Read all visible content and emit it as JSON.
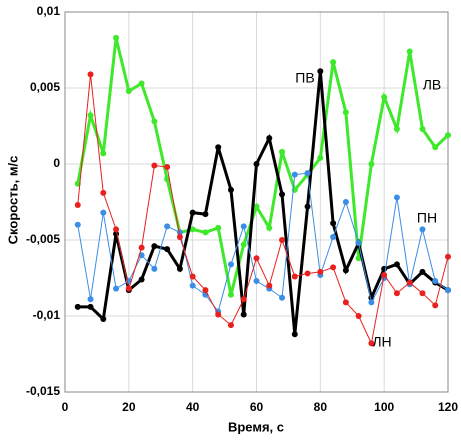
{
  "chart_data": {
    "type": "line",
    "x_label": "Время, с",
    "y_label": "Скорость, м/с",
    "x": [
      4,
      8,
      12,
      16,
      20,
      24,
      28,
      32,
      36,
      40,
      44,
      48,
      52,
      56,
      60,
      64,
      68,
      72,
      76,
      80,
      84,
      88,
      92,
      96,
      100,
      104,
      108,
      112,
      116,
      120
    ],
    "series": [
      {
        "name": "ЛВ",
        "color": "#3ee82a",
        "values": [
          -0.0013,
          0.0032,
          0.0007,
          0.0083,
          0.0048,
          0.0053,
          0.0028,
          -0.001,
          -0.0045,
          -0.0043,
          -0.0045,
          -0.0042,
          -0.0086,
          -0.0053,
          -0.0028,
          -0.0042,
          0.0008,
          -0.0017,
          -0.0007,
          0.0004,
          0.0067,
          0.0034,
          -0.0062,
          0.0,
          0.0044,
          0.0023,
          0.0074,
          0.0023,
          0.0011,
          0.0019
        ]
      },
      {
        "name": "ПВ",
        "color": "#000000",
        "values": [
          -0.0094,
          -0.0094,
          -0.0102,
          -0.0046,
          -0.0083,
          -0.0076,
          -0.0054,
          -0.0056,
          -0.0069,
          -0.0032,
          -0.0033,
          0.0011,
          -0.0017,
          -0.0099,
          0.0,
          0.0017,
          -0.002,
          -0.0112,
          -0.0028,
          0.0061,
          -0.0039,
          -0.007,
          -0.0052,
          -0.0088,
          -0.0069,
          -0.0066,
          -0.0079,
          -0.0071,
          -0.0078,
          -0.0083
        ]
      },
      {
        "name": "ПН",
        "color": "#3a8ee6",
        "values": [
          -0.004,
          -0.0089,
          -0.0032,
          -0.0082,
          -0.0077,
          -0.006,
          -0.0069,
          -0.0041,
          -0.0045,
          -0.008,
          -0.0086,
          -0.0097,
          -0.0066,
          -0.0041,
          -0.0077,
          -0.0082,
          -0.0088,
          -0.0007,
          -0.0006,
          -0.0073,
          -0.0048,
          -0.0025,
          -0.0052,
          -0.0091,
          -0.0075,
          -0.0022,
          -0.0079,
          -0.0043,
          -0.0077,
          -0.0083
        ]
      },
      {
        "name": "ЛН",
        "color": "#e8201e",
        "values": [
          -0.0027,
          0.0059,
          -0.0019,
          -0.0043,
          -0.0082,
          -0.0055,
          -0.0001,
          -0.0002,
          -0.0048,
          -0.0074,
          -0.0083,
          -0.0099,
          -0.0106,
          -0.0089,
          -0.0062,
          -0.008,
          -0.005,
          -0.0074,
          -0.0072,
          -0.0071,
          -0.0068,
          -0.0091,
          -0.01,
          -0.0118,
          -0.0073,
          -0.0085,
          -0.0078,
          -0.0085,
          -0.0093,
          -0.0061
        ]
      }
    ],
    "xlim": [
      0,
      120
    ],
    "xticks": [
      0,
      20,
      40,
      60,
      80,
      100,
      120
    ],
    "ylim": [
      -0.015,
      0.01
    ],
    "yticks": [
      {
        "value": -0.015,
        "label": "-0,015"
      },
      {
        "value": -0.01,
        "label": "-0,01"
      },
      {
        "value": -0.005,
        "label": "-0,005"
      },
      0,
      {
        "value": 0.005,
        "label": "0,005"
      },
      {
        "value": 0.01,
        "label": "0,01"
      }
    ],
    "grid": true
  }
}
